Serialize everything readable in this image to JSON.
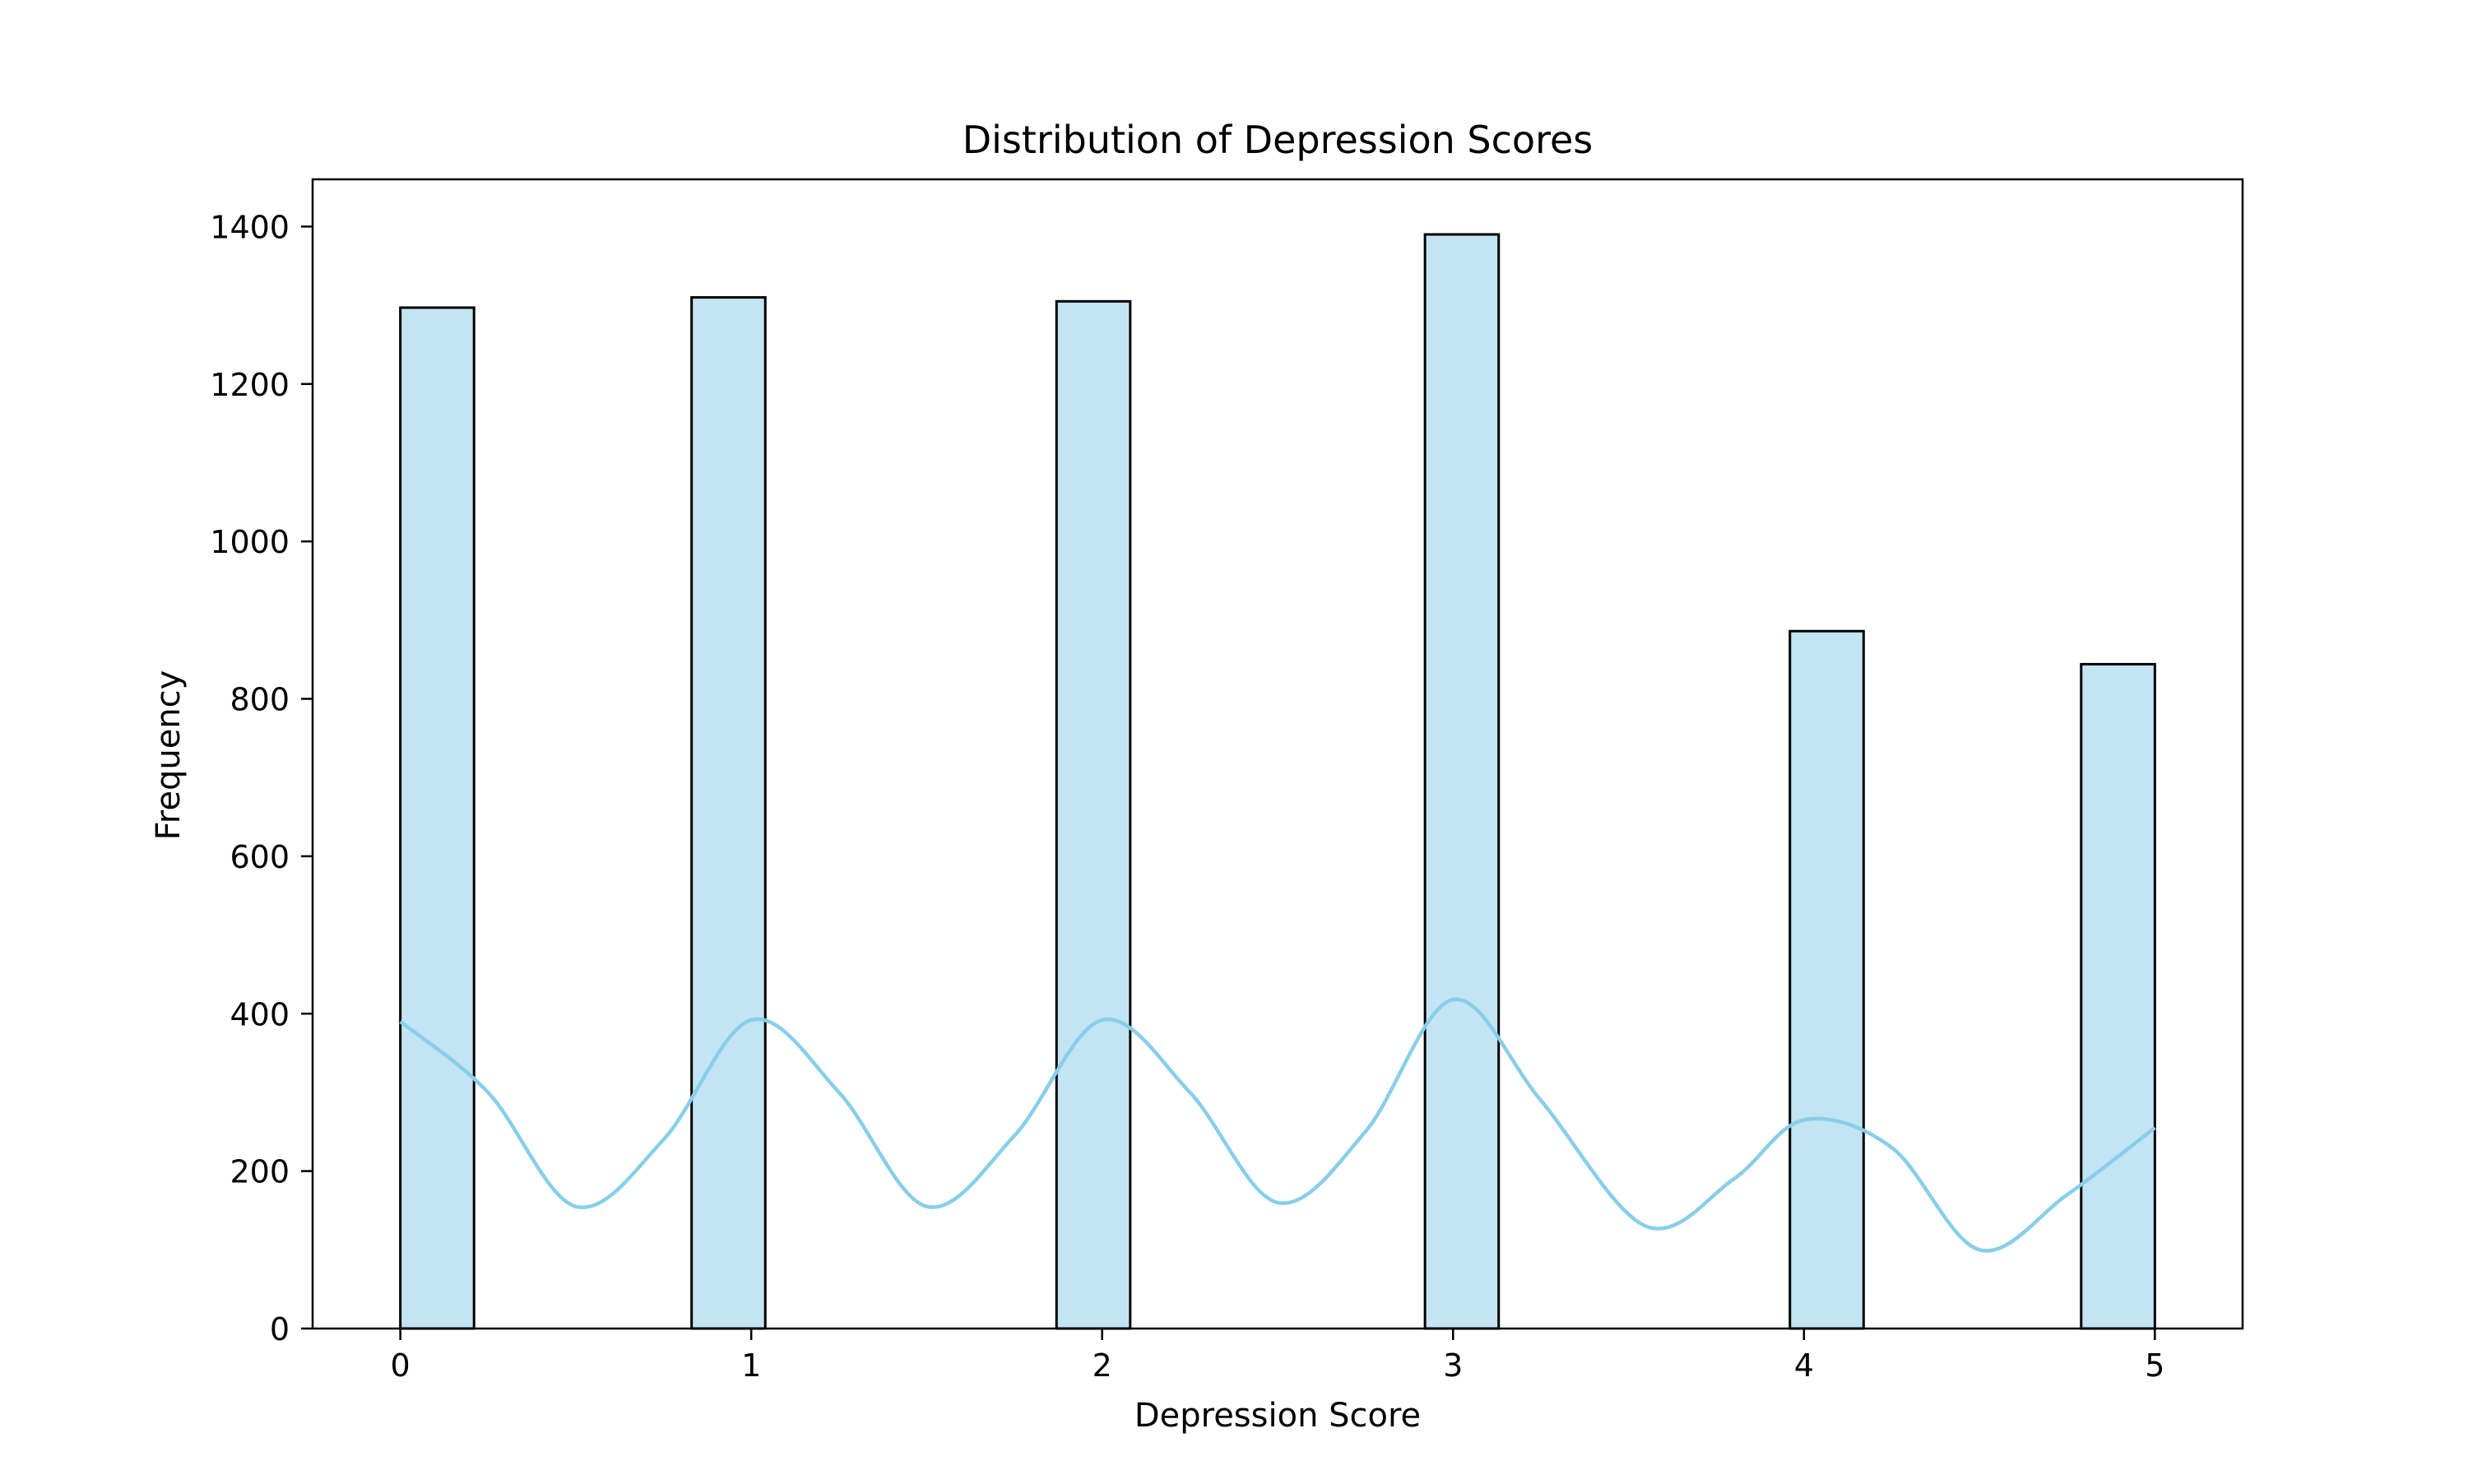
{
  "chart_data": {
    "type": "bar",
    "title": "Distribution of Depression Scores",
    "xlabel": "Depression Score",
    "ylabel": "Frequency",
    "xlim": [
      -0.25,
      5.25
    ],
    "ylim": [
      0,
      1460
    ],
    "x_ticks": [
      0,
      1,
      2,
      3,
      4,
      5
    ],
    "y_ticks": [
      0,
      200,
      400,
      600,
      800,
      1000,
      1200,
      1400
    ],
    "grid": false,
    "bars": [
      {
        "x0": 0.0,
        "x1": 0.21,
        "value": 1297
      },
      {
        "x0": 0.83,
        "x1": 1.04,
        "value": 1310
      },
      {
        "x0": 1.87,
        "x1": 2.08,
        "value": 1305
      },
      {
        "x0": 2.92,
        "x1": 3.13,
        "value": 1390
      },
      {
        "x0": 3.96,
        "x1": 4.17,
        "value": 886
      },
      {
        "x0": 4.79,
        "x1": 5.0,
        "value": 844
      }
    ],
    "kde": {
      "x": [
        0.0,
        0.25,
        0.5,
        0.75,
        1.0,
        1.25,
        1.5,
        1.75,
        2.0,
        2.25,
        2.5,
        2.75,
        3.0,
        3.25,
        3.55,
        3.8,
        4.0,
        4.25,
        4.5,
        4.75,
        5.0
      ],
      "y": [
        390,
        300,
        155,
        240,
        392,
        300,
        155,
        245,
        392,
        300,
        160,
        250,
        418,
        290,
        130,
        190,
        265,
        230,
        100,
        170,
        255
      ]
    },
    "colors": {
      "bar_fill": "#c2e4f3",
      "bar_edge": "#000000",
      "kde_line": "#87ceeb"
    }
  }
}
